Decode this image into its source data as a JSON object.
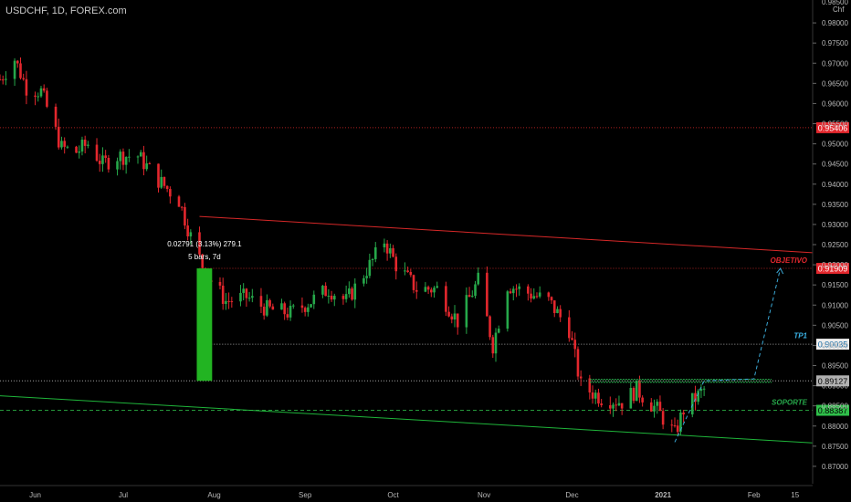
{
  "header": {
    "symbol_label": "USDCHF, 1D, FOREX.com"
  },
  "colors": {
    "background": "#000000",
    "up_candle": "#26a84a",
    "down_candle": "#e3272d",
    "resistance_line": "#d62828",
    "support_line": "#1fb53a",
    "objetivo_line": "#d62828",
    "tp1_line": "#c8c8c8",
    "soporte_dash": "#2fbf4a",
    "projection": "#3ba9d6",
    "axis_text": "#b8b8b8"
  },
  "chart_data": {
    "type": "candlestick",
    "instrument": "USDCHF",
    "timeframe": "1D",
    "x_axis": {
      "type": "date",
      "tick_labels": [
        "Jun",
        "Jul",
        "Aug",
        "Sep",
        "Oct",
        "Nov",
        "Dec",
        "2021",
        "Feb",
        "15"
      ],
      "range": [
        "2020-05-20",
        "2021-02-21"
      ]
    },
    "y_axis": {
      "unit_label": "Chf",
      "top_label": "0.98500",
      "range": [
        0.865,
        0.985
      ],
      "tick_labels": [
        "0.98000",
        "0.97500",
        "0.97000",
        "0.96500",
        "0.96000",
        "0.95500",
        "0.95000",
        "0.94500",
        "0.94000",
        "0.93500",
        "0.93000",
        "0.92500",
        "0.92000",
        "0.91500",
        "0.91000",
        "0.90500",
        "0.90000",
        "0.89500",
        "0.89000",
        "0.88500",
        "0.88000",
        "0.87500",
        "0.87000"
      ]
    },
    "price_path": [
      [
        "2020-05-20",
        0.966
      ],
      [
        "2020-05-25",
        0.971
      ],
      [
        "2020-05-29",
        0.964
      ],
      [
        "2020-06-03",
        0.963
      ],
      [
        "2020-06-10",
        0.949
      ],
      [
        "2020-06-15",
        0.948
      ],
      [
        "2020-06-19",
        0.95
      ],
      [
        "2020-06-24",
        0.945
      ],
      [
        "2020-06-29",
        0.947
      ],
      [
        "2020-07-06",
        0.947
      ],
      [
        "2020-07-13",
        0.941
      ],
      [
        "2020-07-20",
        0.936
      ],
      [
        "2020-07-24",
        0.927
      ],
      [
        "2020-07-29",
        0.918
      ],
      [
        "2020-08-05",
        0.911
      ],
      [
        "2020-08-12",
        0.912
      ],
      [
        "2020-08-19",
        0.909
      ],
      [
        "2020-08-27",
        0.908
      ],
      [
        "2020-09-03",
        0.911
      ],
      [
        "2020-09-09",
        0.914
      ],
      [
        "2020-09-15",
        0.911
      ],
      [
        "2020-09-24",
        0.921
      ],
      [
        "2020-09-28",
        0.926
      ],
      [
        "2020-10-02",
        0.92
      ],
      [
        "2020-10-09",
        0.914
      ],
      [
        "2020-10-16",
        0.914
      ],
      [
        "2020-10-23",
        0.906
      ],
      [
        "2020-10-30",
        0.916
      ],
      [
        "2020-11-04",
        0.9
      ],
      [
        "2020-11-09",
        0.915
      ],
      [
        "2020-11-16",
        0.913
      ],
      [
        "2020-11-23",
        0.911
      ],
      [
        "2020-11-30",
        0.904
      ],
      [
        "2020-12-04",
        0.89
      ],
      [
        "2020-12-11",
        0.887
      ],
      [
        "2020-12-18",
        0.886
      ],
      [
        "2020-12-23",
        0.889
      ],
      [
        "2020-12-30",
        0.884
      ],
      [
        "2021-01-05",
        0.878
      ],
      [
        "2021-01-08",
        0.884
      ],
      [
        "2021-01-15",
        0.889
      ]
    ],
    "price_labels": [
      {
        "name": "objetivo_marker",
        "value": 0.954,
        "label": "0.95406",
        "style": "red-dotted"
      },
      {
        "name": "objetivo",
        "value": 0.9191,
        "label": "0.91909",
        "style": "red-dotted"
      },
      {
        "name": "tp1",
        "value": 0.9003,
        "label": "0.90035",
        "style": "gray-dotted"
      },
      {
        "name": "current",
        "value": 0.8912,
        "label": "0.89127",
        "style": "gray-dotted"
      },
      {
        "name": "soporte",
        "value": 0.8839,
        "label": "0.88387",
        "style": "green-dashed"
      }
    ],
    "annotations": [
      {
        "name": "objetivo",
        "text": "OBJETIVO"
      },
      {
        "name": "tp1",
        "text": "TP1"
      },
      {
        "name": "soporte",
        "text": "SOPORTE"
      }
    ],
    "measurement": {
      "text_line1": "0.02791 (3.13%) 279.1",
      "text_line2": "5 bars, 7d",
      "from": [
        "2020-07-27",
        0.8912
      ],
      "to": [
        "2020-07-31",
        0.9191
      ]
    },
    "trendlines": [
      {
        "name": "resistance",
        "p1": [
          "2020-07-27",
          0.932
        ],
        "p2": [
          "2021-02-21",
          0.923
        ]
      },
      {
        "name": "support",
        "p1": [
          "2020-05-20",
          0.8875
        ],
        "p2": [
          "2021-02-21",
          0.8758
        ]
      }
    ],
    "neckline": {
      "from": "2020-12-07",
      "to": "2021-02-07",
      "value": 0.8912
    },
    "projection_path": [
      [
        "2021-01-05",
        0.876
      ],
      [
        "2021-01-15",
        0.8912
      ],
      [
        "2021-02-01",
        0.8917
      ],
      [
        "2021-02-10",
        0.9191
      ]
    ]
  }
}
